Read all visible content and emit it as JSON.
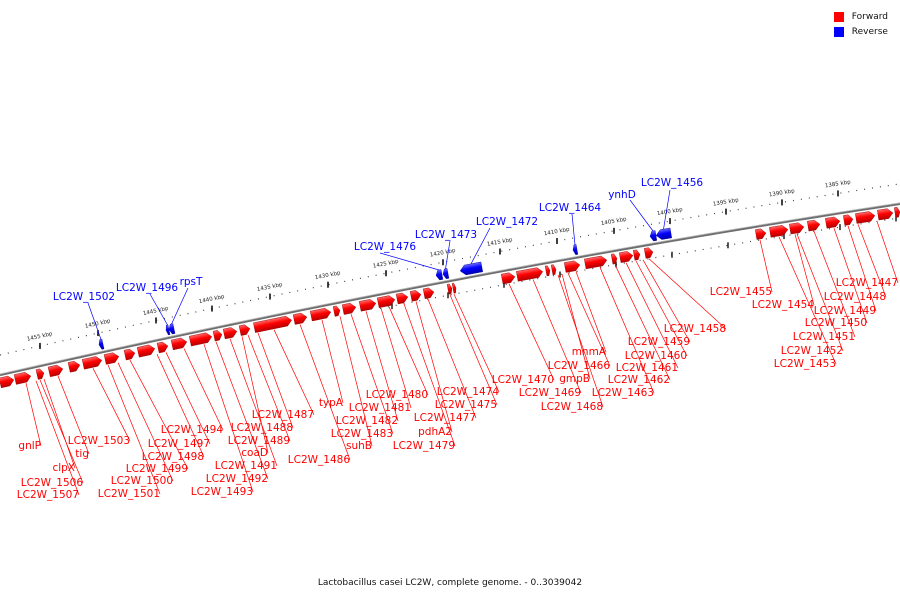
{
  "colors": {
    "forward": "#ff0000",
    "reverse": "#0000ff",
    "backbone": "#777777"
  },
  "legend": [
    {
      "label": "Forward",
      "color": "#ff0000"
    },
    {
      "label": "Reverse",
      "color": "#0000ff"
    }
  ],
  "caption": "Lactobacillus casei LC2W, complete genome. - 0..3039042",
  "ticks": [
    "1385 kbp",
    "1390 kbp",
    "1395 kbp",
    "1400 kbp",
    "1405 kbp",
    "1410 kbp",
    "1415 kbp",
    "1420 kbp",
    "1425 kbp",
    "1430 kbp",
    "1435 kbp",
    "1440 kbp",
    "1445 kbp",
    "1450 kbp",
    "1455 kbp"
  ],
  "reverse_genes": [
    "LC2W_1456",
    "ynhD",
    "LC2W_1464",
    "LC2W_1472",
    "LC2W_1473",
    "LC2W_1476",
    "rpsT",
    "LC2W_1496",
    "LC2W_1502"
  ],
  "forward_genes": [
    "LC2W_1447",
    "LC2W_1448",
    "LC2W_1449",
    "LC2W_1450",
    "LC2W_1451",
    "LC2W_1452",
    "LC2W_1453",
    "LC2W_1454",
    "LC2W_1455",
    "LC2W_1458",
    "LC2W_1459",
    "LC2W_1460",
    "LC2W_1461",
    "LC2W_1462",
    "LC2W_1463",
    "mnmA",
    "LC2W_1466",
    "gmpB",
    "LC2W_1468",
    "LC2W_1469",
    "LC2W_1470",
    "LC2W_1474",
    "LC2W_1475",
    "LC2W_1477",
    "pdhA2",
    "LC2W_1479",
    "LC2W_1480",
    "LC2W_1481",
    "LC2W_1482",
    "LC2W_1483",
    "suhB",
    "typA",
    "LC2W_1486",
    "LC2W_1487",
    "LC2W_1488",
    "LC2W_1489",
    "coaD",
    "LC2W_1491",
    "LC2W_1492",
    "LC2W_1493",
    "LC2W_1494",
    "LC2W_1497",
    "LC2W_1498",
    "LC2W_1499",
    "LC2W_1500",
    "LC2W_1501",
    "LC2W_1503",
    "tig",
    "clpX",
    "LC2W_1506",
    "LC2W_1507",
    "gnlP"
  ]
}
